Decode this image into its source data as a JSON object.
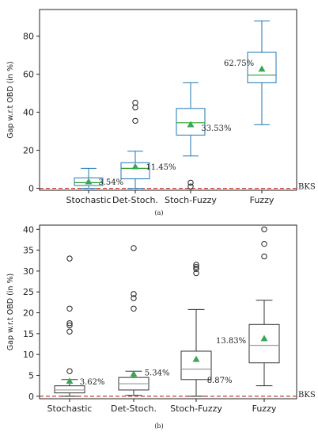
{
  "chart_data": [
    {
      "type": "box",
      "panel_label": "(a)",
      "ylabel": "Gap w.r.t OBD (in %)",
      "ylim": [
        -1,
        94
      ],
      "yticks": [
        0,
        20,
        40,
        60,
        80
      ],
      "categories": [
        "Stochastic",
        "Det-Stoch.",
        "Stoch-Fuzzy",
        "Fuzzy"
      ],
      "reference_line": {
        "label": "BKS",
        "value": 0
      },
      "box_color": "#1f77b4",
      "median_color": "#2ca02c",
      "mean_marker_color": "#3aa655",
      "boxes": [
        {
          "whisker_low": 0,
          "q1": 1.5,
          "median": 3.0,
          "q3": 5.5,
          "whisker_high": 10.5,
          "mean": 3.54,
          "mean_label": "3.54%",
          "outliers": []
        },
        {
          "whisker_low": 0,
          "q1": 5.0,
          "median": 10.5,
          "q3": 13.5,
          "whisker_high": 19.5,
          "mean": 11.45,
          "mean_label": "11.45%",
          "outliers": [
            35.5,
            42.5,
            45
          ]
        },
        {
          "whisker_low": 17,
          "q1": 28,
          "median": 34.5,
          "q3": 42,
          "whisker_high": 55.5,
          "mean": 33.53,
          "mean_label": "33.53%",
          "outliers": [
            1,
            3
          ]
        },
        {
          "whisker_low": 33.5,
          "q1": 55.5,
          "median": 59.5,
          "q3": 71.5,
          "whisker_high": 88,
          "mean": 62.75,
          "mean_label": "62.75%",
          "outliers": []
        }
      ]
    },
    {
      "type": "box",
      "panel_label": "(b)",
      "ylabel": "Gap w.r.t OBD (in %)",
      "ylim": [
        -0.6,
        41
      ],
      "yticks": [
        0,
        5,
        10,
        15,
        20,
        25,
        30,
        35,
        40
      ],
      "categories": [
        "Stochastic",
        "Det-Stoch.",
        "Stoch-Fuzzy",
        "Fuzzy"
      ],
      "reference_line": {
        "label": "BKS",
        "value": 0
      },
      "box_color": "#333333",
      "median_color": "#999999",
      "mean_marker_color": "#3aa655",
      "boxes": [
        {
          "whisker_low": 0,
          "q1": 0.8,
          "median": 1.5,
          "q3": 2.5,
          "whisker_high": 4.0,
          "mean": 3.62,
          "mean_label": "3.62%",
          "outliers": [
            6,
            15.5,
            17,
            17.5,
            21,
            33
          ]
        },
        {
          "whisker_low": 0.2,
          "q1": 1.5,
          "median": 3.0,
          "q3": 4.5,
          "whisker_high": 6.0,
          "mean": 5.34,
          "mean_label": "5.34%",
          "outliers": [
            21,
            23.5,
            24.5,
            35.5
          ]
        },
        {
          "whisker_low": 0,
          "q1": 4.0,
          "median": 6.5,
          "q3": 10.8,
          "whisker_high": 20.8,
          "mean": 8.87,
          "mean_label": "8.87%",
          "outliers": [
            29.5,
            30.5,
            31,
            31.5
          ]
        },
        {
          "whisker_low": 2.5,
          "q1": 8.0,
          "median": 12.2,
          "q3": 17.2,
          "whisker_high": 23.0,
          "mean": 13.83,
          "mean_label": "13.83%",
          "outliers": [
            33.5,
            36.5,
            40
          ]
        }
      ]
    }
  ]
}
